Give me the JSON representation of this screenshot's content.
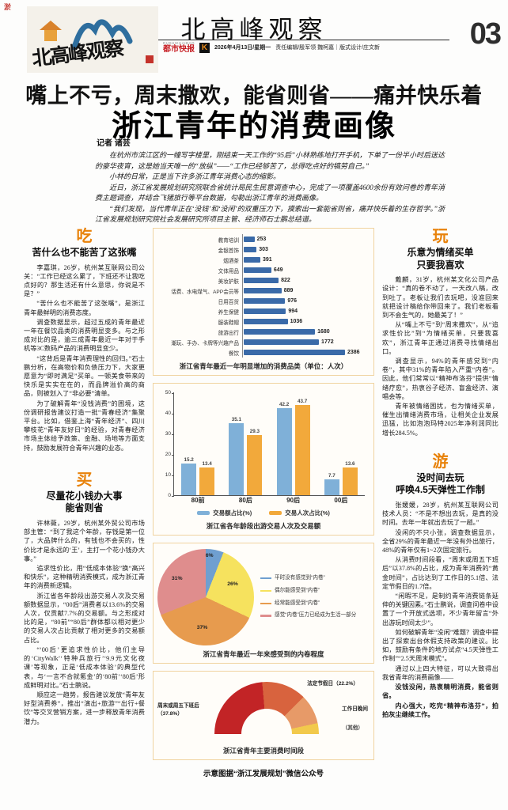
{
  "header": {
    "print_mark": "淤",
    "logo_text": "北高峰观察",
    "masthead_title": "北高峰观察",
    "brand_sub": "DUSHIKUAIBAO",
    "brand": "都市快报",
    "brand_logo_letter": "K",
    "dateline": "2026年4月13日/星期一",
    "editors": "责任编辑/殷军领 魏柯嘉｜版式设计/庄文新",
    "page_number": "03"
  },
  "headline": {
    "kicker": "嘴上不亏，周末撒欢，能省则省——痛并快乐着",
    "title": "浙江青年的消费画像"
  },
  "byline": {
    "label": "记者 诸芸"
  },
  "intro": {
    "p1": "在杭州市滨江区的一幢写字楼里，刚结束一天工作的“95后”小林熟练地打开手机，下单了一份半小时后送达的豪华夜宵，这是她当天唯一的“放纵”——“工作已经够苦了，总得吃点好的犒劳自己。”",
    "p2": "小林的日常，正是当下许多浙江青年消费心态的缩影。",
    "p3": "近日，浙江省发展规划研究院联合省统计局民生民意调查中心，完成了一项覆盖4600余份有效问卷的青年消费主题调查，并结合飞猪旅行等平台数据，勾勒出浙江青年的消费画像。",
    "p4": "“我们发现，当代青年正在‘没钱’和‘没闲’的双重压力下，摸索出一套能省则省，痛并快乐着的生存哲学。”浙江省发展规划研究院社会发展研究所项目主管、经济师石士鹏总结道。"
  },
  "sections": {
    "eat": {
      "tag": "吃",
      "title": "苦什么也不能苦了这张嘴",
      "p1": "李嘉琪，26岁，杭州某互联网公司公关：“工作已经这么累了，下班还不让我吃点好的？那生活还有什么意思，你说是不是？”",
      "p2": "“苦什么也不能苦了这张嘴”，是浙江青年最鲜明的消费态度。",
      "p3": "调查数据显示，超过五成的青年最近一年在餐饮品类的消费明显变多。与之形成对比的是，逾三成青年最近一年对于手机等3C数码产品的消费明显变少。",
      "p4": "“这背后是青年消费理性的回归。”石士鹏分析，在高物价和负债压力下，大家更愿意为“即时满足”买单。一顿美食带来的快乐是实实在在的，而品牌溢价高的商品，则被划入了“非必要”清单。",
      "p5": "为了破解青年“没钱消费”的困境，这份调研报告建议打造一批“青春经济”集聚平台。比如，借鉴上海“青年经济”、四川攀枝花“青年友好日”的经验，对青春经济市场主体给予政策、金融、场地等方面支持，鼓励发展符合青年兴趣的业态。"
    },
    "buy": {
      "tag": "买",
      "title1": "尽量花小钱办大事",
      "title2": "能省则省",
      "p1": "许林薇，29岁，杭州某外贸公司市场部主管：“到了我这个年龄，存钱是第一位了，大品牌什么的，有钱也不会买的，性价比才是永远的‘王’，主打一个花小钱办大事。”",
      "p2": "追求性价比，用“低成本体验”换“高兴和快乐”，这种精明消费模式，成为浙江青年的消费新逻辑。",
      "p3": "浙江省各年龄段出游交易人次及交易额数据显示，“00后”消费者以13.6%的交易人次，仅贡献7.7%的交易额。与之形成对比的是，“80前”“80后”群体都以相对更少的交易人次占比贡献了相对更多的交易额占比。",
      "p4": "“‘00后’更追求性价比，他们主导的‘CityWalk’‘特种兵旅行’‘9.9元文化夜课’等现象，正是‘低成本体验’的典型代表，与‘一言不合就氪金’的‘80前’‘80后’形成鲜明对比。”石士鹏说。",
      "p5": "顺应这一趋势，报告建议发放“青年友好型消费券”，推出“演出+旅游”“出行+餐饮”等交叉营销方案，进一步释放青年消费潜力。"
    },
    "play": {
      "tag": "玩",
      "title1": "乐意为情绪买单",
      "title2": "只要我喜欢",
      "p1": "戴麟，31岁，杭州某文化公司产品设计：“真的卷不动了，一天改八稿，改到吐了。老板让我们去玩吧，没准回来就把设计稿给你带回来了。我们老板看到不会生气的，她最美了！”",
      "p2": "从“嘴上不亏”到“周末撒欢”，从“追求性价比”到“为情绪买单，只要我喜欢”，浙江青年正通过消费寻找情绪出口。",
      "p3": "调查显示，94%的青年感觉到“内卷”，其中31%的青年陷入严重“内卷”。因此，他们常常以“精神布洛芬”提供“情绪疗愈”，热衷谷子经济、盲盒经济、演唱会等。",
      "p4": "青年被情绪困扰，也为情绪买单，催生出情绪消费市场，让相关企业发展迅猛，比如泡泡玛特2025年净利润同比增长284.5%。"
    },
    "travel": {
      "tag": "游",
      "title1": "没时间去玩",
      "title2": "呼唤4.5天弹性工作制",
      "p1": "张媛媛，28岁，杭州某互联网公司技术人员：“不是不想出去玩，是真的没时间。去年一年就出去玩了一趟。”",
      "p2": "没闲的不只小张，调查数据显示，全省29%的青年最近一年没有外出旅行，48%的青年仅有1~2次固定旅行。",
      "p3": "从消费时间段看，“周末或周五下班后”以37.8%的占比，成为青年消费的“黄金时间”，占比达到了工作日的5.1倍、法定节假日的1.7倍。",
      "p4": "“闲暇不足，是制约青年消费链条延伸的关键因素。”石士鹏说，调查问卷中设置了一个开放式选项，不少青年留言“外出游玩时间太少”。",
      "p5": "如何破解青年“没闲”难题？调查中提出了探索出台休假支持政策的建议。比如，鼓励有条件的地方试点“4.5天弹性工作制”“2.5天周末模式”。",
      "p6": "通过以上四大特征，可以大致得出我省青年的消费画像——",
      "b1": "没钱没闲，热衷精明消费，能省则省。",
      "b2": "内心强大，吃完“精神布洛芬”，拍拍灰尘继续工作。"
    }
  },
  "chart_data": [
    {
      "type": "bar",
      "orientation": "horizontal",
      "caption": "浙江省青年最近一年明显增加的消费品类（单位：人次）",
      "unit": "人次",
      "bar_color": "#3a6aa8",
      "categories": [
        "教育培训",
        "金银首饰",
        "烟酒茶",
        "文体用品",
        "美妆护肤",
        "话费、水电煤气、APP会员等",
        "日用百货",
        "养生保健",
        "服装鞋帽",
        "旅游出行",
        "潮玩、手办、卡牌等兴趣产品",
        "餐饮"
      ],
      "values": [
        253,
        303,
        391,
        649,
        822,
        889,
        976,
        994,
        1036,
        1680,
        1772,
        2386
      ]
    },
    {
      "type": "bar",
      "orientation": "vertical-grouped",
      "caption": "浙江省各年龄段出游交易人次及交易额",
      "categories": [
        "80前",
        "80后",
        "90后",
        "00后"
      ],
      "series": [
        {
          "name": "交易额占比(%)",
          "color": "#7fb0d8",
          "values": [
            15.2,
            35.1,
            42.2,
            7.7
          ]
        },
        {
          "name": "交易人次占比(%)",
          "color": "#f2a93b",
          "values": [
            13.4,
            29.3,
            43.7,
            13.6
          ]
        }
      ],
      "ylim": [
        0,
        50
      ],
      "yticks": [
        0,
        10,
        20,
        30,
        40,
        50
      ],
      "legend_position": "bottom"
    },
    {
      "type": "pie",
      "caption": "浙江省青年最近一年来感受到的内卷程度",
      "legend_position": "right",
      "slices": [
        {
          "label": "平时没有感觉到“内卷”",
          "value": 6,
          "pct_display": "6%",
          "color": "#6f9fd0"
        },
        {
          "label": "偶尔能感受到“内卷”",
          "value": 26,
          "pct_display": "26%",
          "color": "#f6e25e"
        },
        {
          "label": "经常能感受到“内卷”",
          "value": 37,
          "pct_display": "37%",
          "color": "#e79b4e"
        },
        {
          "label": "感觉“内卷”压力已经成为生活一部分",
          "value": 31,
          "pct_display": "31%",
          "color": "#df8d8d"
        }
      ]
    },
    {
      "type": "pie",
      "subtype": "half-donut",
      "caption": "浙江省青年主要消费时间段",
      "segments": [
        {
          "label": "周末或周五下班后",
          "value": 37.8,
          "color": "#c22426"
        },
        {
          "label": "法定节假日",
          "value": 22.2,
          "color": "#d8633e"
        },
        {
          "label": "工作日晚间",
          "value": 14.6,
          "color": "#e79a68"
        },
        {
          "label": "其他",
          "value": 5.4,
          "color": "#f2c94c"
        }
      ],
      "callouts": {
        "left": "周末或周五下班后（37.8%）",
        "top": "法定节假日（22.2%）",
        "right": "工作日晚间",
        "other": "（其他）"
      }
    }
  ],
  "credit": "示意图据“浙江发展规划”微信公众号",
  "colors": {
    "accent": "#e8820a",
    "brand_red": "#c61d23",
    "chart_border": "#f0d3a0"
  }
}
